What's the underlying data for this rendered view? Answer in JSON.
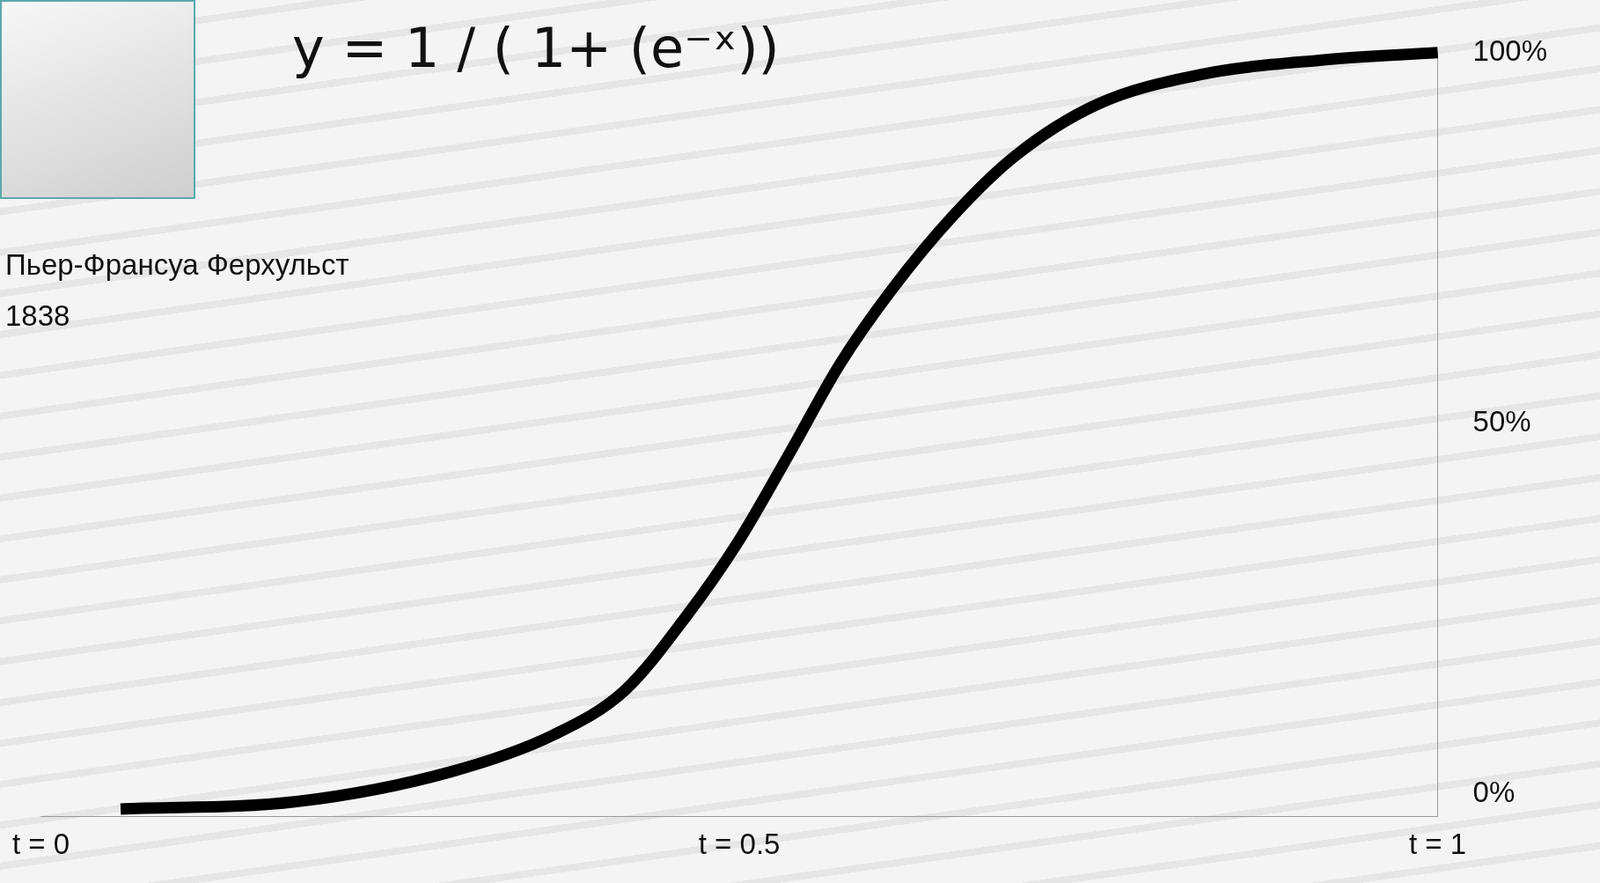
{
  "chart_data": {
    "type": "line",
    "title": "y = 1 / ( 1+ (e⁻ˣ))",
    "annotations": [
      "Пьер-Франсуа Ферхульст",
      "1838"
    ],
    "x": [
      0.057,
      0.183,
      0.293,
      0.367,
      0.418,
      0.462,
      0.499,
      0.536,
      0.572,
      0.609,
      0.653,
      0.697,
      0.756,
      0.829,
      0.917,
      1.0
    ],
    "values": [
      -2,
      -1,
      3,
      8,
      14,
      24,
      34,
      46,
      58,
      68,
      78,
      86,
      93,
      97,
      99,
      100
    ],
    "color": "#000000",
    "xlim": [
      0,
      1
    ],
    "xticks": [
      {
        "value": 0,
        "label": "t = 0"
      },
      {
        "value": 0.5,
        "label": "t = 0.5"
      },
      {
        "value": 1,
        "label": "t = 1"
      }
    ],
    "ylim": [
      -3,
      100
    ],
    "yticks": [
      {
        "value": 0,
        "label": "0%"
      },
      {
        "value": 50,
        "label": "50%"
      },
      {
        "value": 100,
        "label": "100%"
      }
    ],
    "grid": false
  }
}
